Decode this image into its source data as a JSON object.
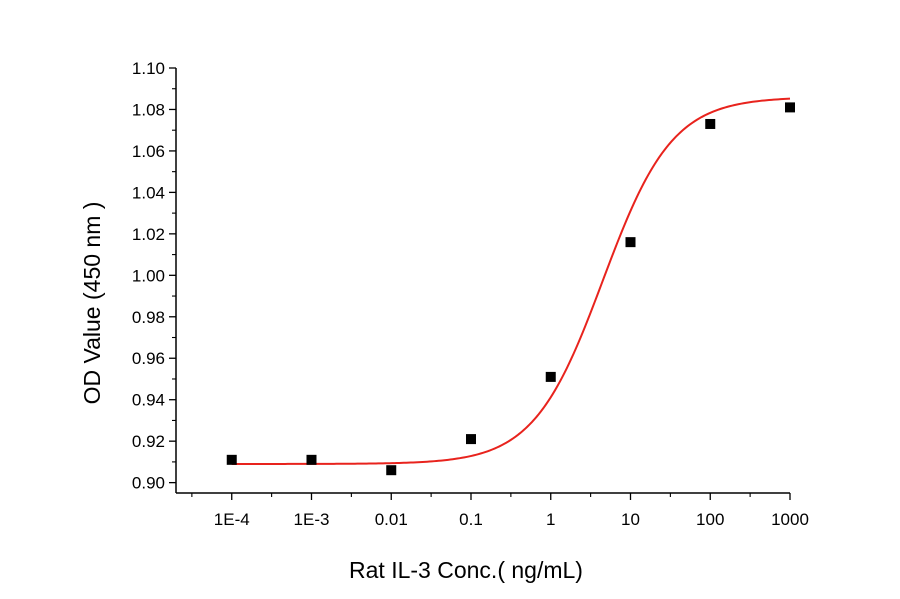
{
  "chart_data": {
    "type": "scatter",
    "title": "",
    "xlabel": "Rat  IL-3 Conc.( ng/mL)",
    "ylabel": "OD Value (450 nm )",
    "x_scale": "log",
    "xlim": [
      2e-05,
      1000
    ],
    "ylim": [
      0.895,
      1.1
    ],
    "x_ticks": [
      0.0001,
      0.001,
      0.01,
      0.1,
      1,
      10,
      100,
      1000
    ],
    "x_tick_labels": [
      "1E-4",
      "1E-3",
      "0.01",
      "0.1",
      "1",
      "10",
      "100",
      "1000"
    ],
    "y_ticks": [
      0.9,
      0.92,
      0.94,
      0.96,
      0.98,
      1.0,
      1.02,
      1.04,
      1.06,
      1.08,
      1.1
    ],
    "y_tick_labels": [
      "0.90",
      "0.92",
      "0.94",
      "0.96",
      "0.98",
      "1.00",
      "1.02",
      "1.04",
      "1.06",
      "1.08",
      "1.10"
    ],
    "grid": false,
    "legend": "none",
    "series": [
      {
        "x": [
          0.0001,
          0.001,
          0.01,
          0.1,
          1,
          10,
          100,
          1000
        ],
        "y": [
          0.911,
          0.911,
          0.906,
          0.921,
          0.951,
          1.016,
          1.073,
          1.081
        ],
        "marker": "square",
        "color": "#000000"
      }
    ],
    "fit": {
      "model": "4PL",
      "bottom": 0.909,
      "top": 1.086,
      "ec50": 4.5,
      "hill": 1.0,
      "color": "#e8231d"
    }
  }
}
